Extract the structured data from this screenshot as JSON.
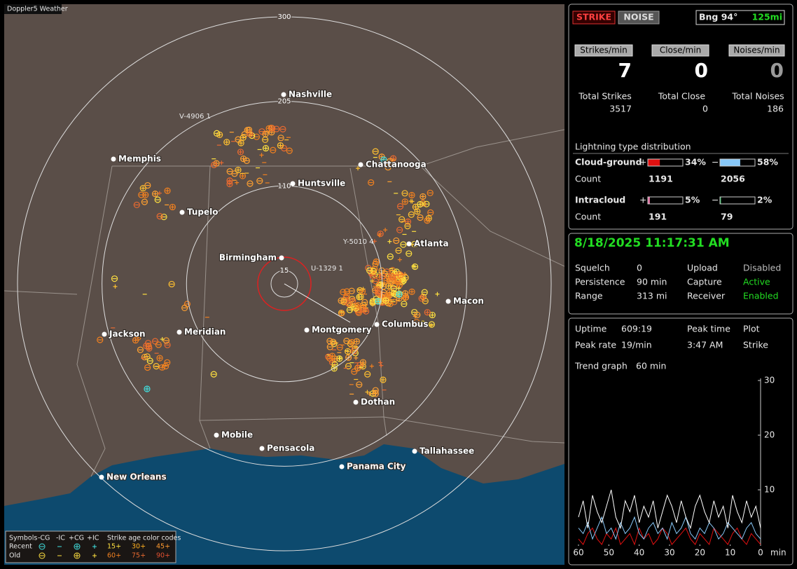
{
  "app_title": "Doppler5 Weather",
  "map": {
    "range_rings": [
      15,
      110,
      205,
      300
    ],
    "cities": [
      "Nashville",
      "Memphis",
      "Chattanooga",
      "Huntsville",
      "Tupelo",
      "Birmingham",
      "Atlanta",
      "Macon",
      "Columbus",
      "Montgomery",
      "Jackson",
      "Meridian",
      "Dothan",
      "Mobile",
      "Pensacola",
      "Tallahassee",
      "Panama City",
      "New Orleans"
    ],
    "storm_tracks": [
      "V-4906 1",
      "Y-5010 4",
      "U-1329 1"
    ],
    "legend": {
      "symbols_header": "Symbols",
      "columns": [
        "-CG",
        "-IC",
        "+CG",
        "+IC"
      ],
      "age_header": "Strike age color codes",
      "rows": [
        {
          "label": "Recent",
          "ages": [
            {
              "label": "15+",
              "color": "#ffe040"
            },
            {
              "label": "30+",
              "color": "#ffb020"
            },
            {
              "label": "45+",
              "color": "#ff9a30"
            }
          ]
        },
        {
          "label": "Old",
          "ages": [
            {
              "label": "60+",
              "color": "#f08020"
            },
            {
              "label": "75+",
              "color": "#e86a30"
            },
            {
              "label": "90+",
              "color": "#e05030"
            }
          ]
        }
      ]
    }
  },
  "status": {
    "buttons": [
      "STRIKE",
      "NOISE"
    ],
    "bearing": "Bng 94°",
    "distance": "125mi",
    "rates": [
      {
        "label": "Strikes/min",
        "value": 7
      },
      {
        "label": "Close/min",
        "value": 0
      },
      {
        "label": "Noises/min",
        "value": 0
      }
    ],
    "totals": [
      {
        "label": "Total Strikes",
        "value": 3517
      },
      {
        "label": "Total Close",
        "value": 0
      },
      {
        "label": "Total Noises",
        "value": 186
      }
    ],
    "distribution": {
      "title": "Lightning type distribution",
      "count_label": "Count",
      "rows": [
        {
          "type": "Cloud-ground",
          "positive": {
            "sign": "+",
            "value": 34,
            "label": "34%",
            "color": "#e01010"
          },
          "negative": {
            "sign": "−",
            "value": 58,
            "label": "58%",
            "color": "#88c8f8"
          },
          "counts": [
            1191,
            2056
          ]
        },
        {
          "type": "Intracloud",
          "positive": {
            "sign": "+",
            "value": 5,
            "label": "5%",
            "color": "#e070a0"
          },
          "negative": {
            "sign": "−",
            "value": 2,
            "label": "2%",
            "color": "#30c060"
          },
          "counts": [
            191,
            79
          ]
        }
      ]
    }
  },
  "receiver": {
    "datetime": "8/18/2025 11:17:31 AM",
    "rows": [
      [
        {
          "label": "Squelch",
          "value": "0"
        },
        {
          "label": "Upload",
          "value": "Disabled",
          "color": "#bbbbbb"
        }
      ],
      [
        {
          "label": "Persistence",
          "value": "90 min"
        },
        {
          "label": "Capture",
          "value": "Active",
          "color": "#22dd22"
        }
      ],
      [
        {
          "label": "Range",
          "value": "313 mi"
        },
        {
          "label": "Receiver",
          "value": "Enabled",
          "color": "#22dd22"
        }
      ]
    ]
  },
  "stats": {
    "rows": [
      [
        {
          "label": "Uptime",
          "value": "609:19"
        },
        {
          "label": "Peak time"
        },
        {
          "label": "Plot"
        }
      ],
      [
        {
          "label": "Peak rate",
          "value": "19/min"
        },
        {
          "label": "3:47 AM"
        },
        {
          "label": "Strike"
        }
      ]
    ],
    "trend_label": "Trend graph",
    "trend_period": "60 min"
  },
  "chart_data": {
    "type": "line",
    "x_unit": "min",
    "xlim": [
      60,
      0
    ],
    "xticks": [
      60,
      50,
      40,
      30,
      20,
      10,
      0
    ],
    "ylim": [
      0,
      30
    ],
    "yticks": [
      10,
      20,
      30
    ],
    "series": [
      {
        "color": "#ffffff",
        "values": [
          5,
          8,
          3,
          9,
          6,
          4,
          7,
          10,
          5,
          3,
          8,
          6,
          9,
          4,
          7,
          5,
          8,
          3,
          6,
          9,
          7,
          4,
          8,
          5,
          3,
          7,
          9,
          6,
          4,
          8,
          5,
          7,
          3,
          9,
          6,
          4,
          8,
          5,
          7,
          3
        ]
      },
      {
        "color": "#88c8f8",
        "values": [
          3,
          2,
          4,
          1,
          3,
          5,
          2,
          3,
          1,
          4,
          2,
          3,
          5,
          2,
          1,
          3,
          4,
          2,
          3,
          1,
          4,
          2,
          3,
          5,
          2,
          1,
          3,
          2,
          4,
          3,
          1,
          2,
          4,
          3,
          2,
          1,
          3,
          4,
          2,
          1
        ]
      },
      {
        "color": "#e01010",
        "values": [
          1,
          0,
          2,
          3,
          1,
          0,
          2,
          1,
          3,
          0,
          1,
          2,
          0,
          3,
          1,
          2,
          0,
          1,
          3,
          2,
          0,
          1,
          2,
          3,
          1,
          0,
          2,
          1,
          0,
          3,
          2,
          1,
          0,
          2,
          3,
          1,
          0,
          2,
          1,
          0
        ]
      }
    ]
  }
}
